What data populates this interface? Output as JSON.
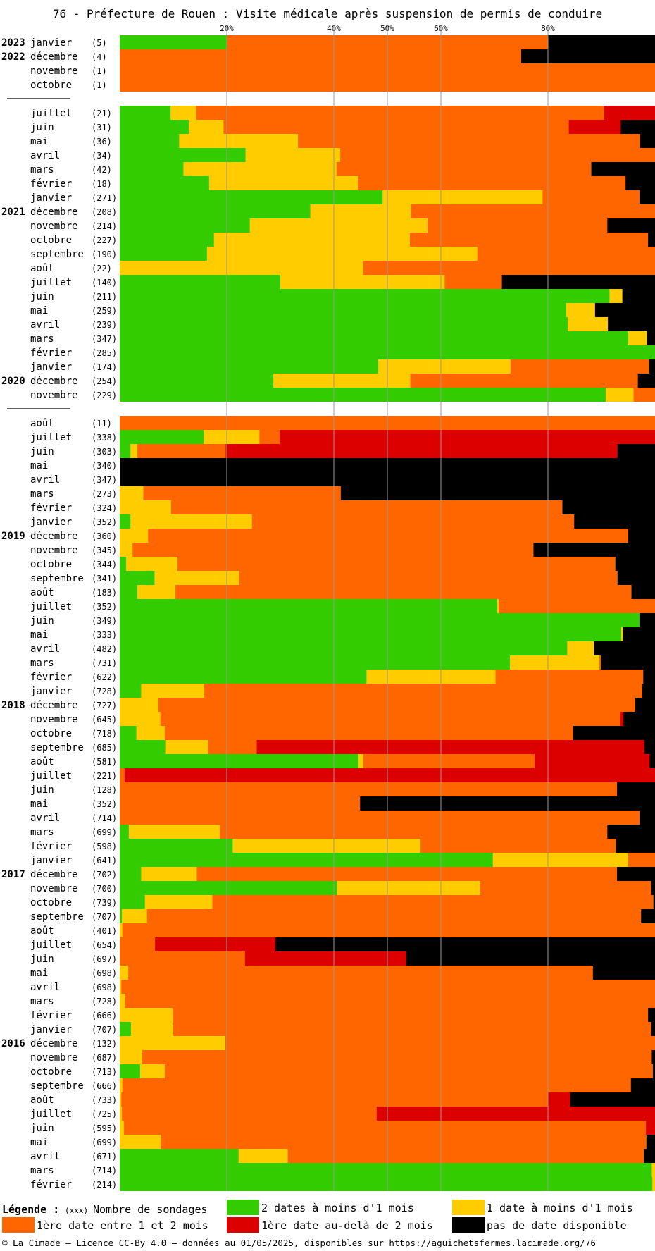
{
  "title": "76 - Préfecture de Rouen : Visite médicale après suspension de permis de conduire",
  "chart_data": {
    "type": "bar",
    "orientation": "horizontal-stacked-100",
    "title": "76 - Préfecture de Rouen : Visite médicale après suspension de permis de conduire",
    "x_ticks": [
      "20%",
      "40%",
      "50%",
      "60%",
      "80%"
    ],
    "xlim": [
      0,
      100
    ],
    "legend_placement": "bottom",
    "series": [
      {
        "name": "2 dates à moins d'1 mois",
        "color": "#33cc00"
      },
      {
        "name": "1 date à moins d'1 mois",
        "color": "#ffcc00"
      },
      {
        "name": "1ère date entre 1 et 2 mois",
        "color": "#ff6600"
      },
      {
        "name": "1ère date au-delà de 2 mois",
        "color": "#dd0000"
      },
      {
        "name": "pas de date disponible",
        "color": "#000000"
      }
    ],
    "rows": [
      {
        "year": "2023",
        "month": "janvier",
        "count": "(5)",
        "values": [
          20,
          0,
          60,
          0,
          20
        ]
      },
      {
        "year": "2022",
        "month": "décembre",
        "count": "(4)",
        "values": [
          0,
          0,
          75,
          0,
          25
        ]
      },
      {
        "month": "novembre",
        "count": "(1)",
        "values": [
          0,
          0,
          100,
          0,
          0
        ]
      },
      {
        "month": "octobre",
        "count": "(1)",
        "values": [
          0,
          0,
          100,
          0,
          0
        ]
      },
      {
        "gap": true
      },
      {
        "month": "juillet",
        "count": "(21)",
        "values": [
          9.5,
          4.8,
          76.2,
          9.5,
          0
        ]
      },
      {
        "month": "juin",
        "count": "(31)",
        "values": [
          12.9,
          6.5,
          64.5,
          9.7,
          6.4
        ]
      },
      {
        "month": "mai",
        "count": "(36)",
        "values": [
          11.1,
          22.2,
          63.9,
          0,
          2.8
        ]
      },
      {
        "month": "avril",
        "count": "(34)",
        "values": [
          23.5,
          17.7,
          58.8,
          0,
          0
        ]
      },
      {
        "month": "mars",
        "count": "(42)",
        "values": [
          11.9,
          28.6,
          47.6,
          0,
          11.9
        ]
      },
      {
        "month": "février",
        "count": "(18)",
        "values": [
          16.7,
          27.8,
          50,
          0,
          5.5
        ]
      },
      {
        "month": "janvier",
        "count": "(271)",
        "values": [
          49.1,
          29.9,
          18.1,
          0,
          2.9
        ]
      },
      {
        "year": "2021",
        "month": "décembre",
        "count": "(208)",
        "values": [
          35.6,
          18.8,
          45.6,
          0,
          0
        ]
      },
      {
        "month": "novembre",
        "count": "(214)",
        "values": [
          24.3,
          33.2,
          33.6,
          0,
          8.9
        ]
      },
      {
        "month": "octobre",
        "count": "(227)",
        "values": [
          17.6,
          36.6,
          44.5,
          0,
          1.3
        ]
      },
      {
        "month": "septembre",
        "count": "(190)",
        "values": [
          16.3,
          50.5,
          33.2,
          0,
          0
        ]
      },
      {
        "month": "août",
        "count": "(22)",
        "values": [
          0,
          45.5,
          54.5,
          0,
          0
        ]
      },
      {
        "month": "juillet",
        "count": "(140)",
        "values": [
          30,
          30.7,
          10.7,
          0,
          28.6
        ]
      },
      {
        "month": "juin",
        "count": "(211)",
        "values": [
          91.5,
          2.4,
          0,
          0,
          6.1
        ]
      },
      {
        "month": "mai",
        "count": "(259)",
        "values": [
          83.4,
          5.4,
          0,
          0,
          11.2
        ]
      },
      {
        "month": "avril",
        "count": "(239)",
        "values": [
          83.7,
          7.5,
          0,
          0,
          8.8
        ]
      },
      {
        "month": "mars",
        "count": "(347)",
        "values": [
          95,
          3.5,
          0,
          0,
          1.5
        ]
      },
      {
        "month": "février",
        "count": "(285)",
        "values": [
          100,
          0,
          0,
          0,
          0
        ]
      },
      {
        "month": "janvier",
        "count": "(174)",
        "values": [
          48.3,
          24.7,
          25.9,
          0,
          1.1
        ]
      },
      {
        "year": "2020",
        "month": "décembre",
        "count": "(254)",
        "values": [
          28.7,
          25.6,
          42.5,
          0,
          3.2
        ]
      },
      {
        "month": "novembre",
        "count": "(229)",
        "values": [
          90.8,
          5.2,
          4,
          0,
          0
        ]
      },
      {
        "gap": true
      },
      {
        "month": "août",
        "count": "(11)",
        "values": [
          0,
          0,
          100,
          0,
          0
        ]
      },
      {
        "month": "juillet",
        "count": "(338)",
        "values": [
          15.7,
          10.4,
          3.8,
          70.1,
          0
        ]
      },
      {
        "month": "juin",
        "count": "(303)",
        "values": [
          2,
          1.3,
          16.5,
          73.2,
          7
        ]
      },
      {
        "month": "mai",
        "count": "(340)",
        "values": [
          0,
          0,
          0,
          0,
          100
        ]
      },
      {
        "month": "avril",
        "count": "(347)",
        "values": [
          0,
          0,
          0,
          0,
          100
        ]
      },
      {
        "month": "mars",
        "count": "(273)",
        "values": [
          0,
          4.4,
          36.9,
          0,
          58.7
        ]
      },
      {
        "month": "février",
        "count": "(324)",
        "values": [
          0,
          9.6,
          73.1,
          0,
          17.3
        ]
      },
      {
        "month": "janvier",
        "count": "(352)",
        "values": [
          2,
          22.7,
          60.2,
          0,
          15.1
        ]
      },
      {
        "year": "2019",
        "month": "décembre",
        "count": "(360)",
        "values": [
          0,
          5.3,
          89.7,
          0,
          5
        ]
      },
      {
        "month": "novembre",
        "count": "(345)",
        "values": [
          0,
          2.4,
          74.9,
          0,
          22.7
        ]
      },
      {
        "month": "octobre",
        "count": "(344)",
        "values": [
          1.2,
          9.6,
          81.8,
          0,
          7.4
        ]
      },
      {
        "month": "septembre",
        "count": "(341)",
        "values": [
          6.5,
          15.8,
          70.7,
          0,
          7
        ]
      },
      {
        "month": "août",
        "count": "(183)",
        "values": [
          3.3,
          7.1,
          85.2,
          0,
          4.4
        ]
      },
      {
        "month": "juillet",
        "count": "(352)",
        "values": [
          70.5,
          0.3,
          29.2,
          0,
          0
        ]
      },
      {
        "month": "juin",
        "count": "(349)",
        "values": [
          97.1,
          0,
          0,
          0,
          2.9
        ]
      },
      {
        "month": "mai",
        "count": "(333)",
        "values": [
          93.7,
          0.3,
          0,
          0,
          6
        ]
      },
      {
        "month": "avril",
        "count": "(482)",
        "values": [
          83.6,
          5,
          0,
          0,
          11.4
        ]
      },
      {
        "month": "mars",
        "count": "(731)",
        "values": [
          72.9,
          16.7,
          0.3,
          0,
          10.1
        ]
      },
      {
        "month": "février",
        "count": "(622)",
        "values": [
          46.1,
          24.1,
          27.6,
          0,
          2.2
        ]
      },
      {
        "month": "janvier",
        "count": "(728)",
        "values": [
          4,
          11.8,
          81.8,
          0,
          2.4
        ]
      },
      {
        "year": "2018",
        "month": "décembre",
        "count": "(727)",
        "values": [
          0,
          7.2,
          89.1,
          0,
          3.7
        ]
      },
      {
        "month": "novembre",
        "count": "(645)",
        "values": [
          0,
          7.6,
          85.9,
          0.6,
          5.9
        ]
      },
      {
        "month": "octobre",
        "count": "(718)",
        "values": [
          3.1,
          5.3,
          76.3,
          0,
          15.3
        ]
      },
      {
        "month": "septembre",
        "count": "(685)",
        "values": [
          8.5,
          8,
          9.1,
          72.4,
          2
        ]
      },
      {
        "month": "août",
        "count": "(581)",
        "values": [
          44.6,
          0.9,
          32,
          21.5,
          1
        ]
      },
      {
        "month": "juillet",
        "count": "(221)",
        "values": [
          0,
          0,
          0.9,
          99.1,
          0
        ]
      },
      {
        "month": "juin",
        "count": "(128)",
        "values": [
          0,
          0,
          92.9,
          0,
          7.1
        ]
      },
      {
        "month": "mai",
        "count": "(352)",
        "values": [
          0,
          0,
          44.9,
          0,
          55.1
        ]
      },
      {
        "month": "avril",
        "count": "(714)",
        "values": [
          0,
          0,
          97.1,
          0,
          2.9
        ]
      },
      {
        "month": "mars",
        "count": "(699)",
        "values": [
          1.7,
          17,
          72.4,
          0,
          8.9
        ]
      },
      {
        "month": "février",
        "count": "(598)",
        "values": [
          21.1,
          35.1,
          36.5,
          0,
          7.3
        ]
      },
      {
        "month": "janvier",
        "count": "(641)",
        "values": [
          69.7,
          25.3,
          5,
          0,
          0
        ]
      },
      {
        "year": "2017",
        "month": "décembre",
        "count": "(702)",
        "values": [
          4,
          10.4,
          78.5,
          0,
          7.1
        ]
      },
      {
        "month": "novembre",
        "count": "(700)",
        "values": [
          40.6,
          26.7,
          32,
          0,
          0.7
        ]
      },
      {
        "month": "octobre",
        "count": "(739)",
        "values": [
          4.7,
          12.6,
          82.4,
          0,
          0.3
        ]
      },
      {
        "month": "septembre",
        "count": "(707)",
        "values": [
          0.4,
          4.7,
          92.3,
          0,
          2.6
        ]
      },
      {
        "month": "août",
        "count": "(401)",
        "values": [
          0,
          0.5,
          99.5,
          0,
          0
        ]
      },
      {
        "month": "juillet",
        "count": "(654)",
        "values": [
          0,
          0,
          6.6,
          22.5,
          70.9
        ]
      },
      {
        "month": "juin",
        "count": "(697)",
        "values": [
          0,
          0,
          23.4,
          30.1,
          46.5
        ]
      },
      {
        "month": "mai",
        "count": "(698)",
        "values": [
          0,
          1.6,
          86.8,
          0,
          11.6
        ]
      },
      {
        "month": "avril",
        "count": "(698)",
        "values": [
          0,
          0.3,
          99.7,
          0,
          0
        ]
      },
      {
        "month": "mars",
        "count": "(728)",
        "values": [
          0,
          1,
          99,
          0,
          0
        ]
      },
      {
        "month": "février",
        "count": "(666)",
        "values": [
          0,
          9.9,
          88.8,
          0,
          1.3
        ]
      },
      {
        "month": "janvier",
        "count": "(707)",
        "values": [
          2.1,
          7.9,
          89.3,
          0,
          0.7
        ]
      },
      {
        "year": "2016",
        "month": "décembre",
        "count": "(132)",
        "values": [
          0,
          19.7,
          80.3,
          0,
          0
        ]
      },
      {
        "month": "novembre",
        "count": "(687)",
        "values": [
          0,
          4.2,
          95.2,
          0,
          0.6
        ]
      },
      {
        "month": "octobre",
        "count": "(713)",
        "values": [
          3.8,
          4.6,
          91.2,
          0,
          0.4
        ]
      },
      {
        "month": "septembre",
        "count": "(666)",
        "values": [
          0,
          0.5,
          95,
          0,
          4.5
        ]
      },
      {
        "month": "août",
        "count": "(733)",
        "values": [
          0,
          0.3,
          79.7,
          4.2,
          15.8
        ]
      },
      {
        "month": "juillet",
        "count": "(725)",
        "values": [
          0,
          0.4,
          47.6,
          52,
          0
        ]
      },
      {
        "month": "juin",
        "count": "(595)",
        "values": [
          0,
          0.8,
          97.5,
          1.7,
          0
        ]
      },
      {
        "month": "mai",
        "count": "(699)",
        "values": [
          0,
          7.7,
          90.7,
          0,
          1.6
        ]
      },
      {
        "month": "avril",
        "count": "(671)",
        "values": [
          22.2,
          9.2,
          66.5,
          0,
          2.1
        ]
      },
      {
        "month": "mars",
        "count": "(714)",
        "values": [
          99.4,
          0.6,
          0,
          0,
          0
        ]
      },
      {
        "month": "février",
        "count": "(214)",
        "values": [
          99.5,
          0.5,
          0,
          0,
          0
        ]
      }
    ]
  },
  "legend": {
    "label": "Légende :",
    "count_marker": "(xxx)",
    "count_text": "Nombre de sondages"
  },
  "footer": "© La Cimade — Licence CC-By 4.0 — données au 01/05/2025, disponibles sur https://aguichetsfermes.lacimade.org/76"
}
